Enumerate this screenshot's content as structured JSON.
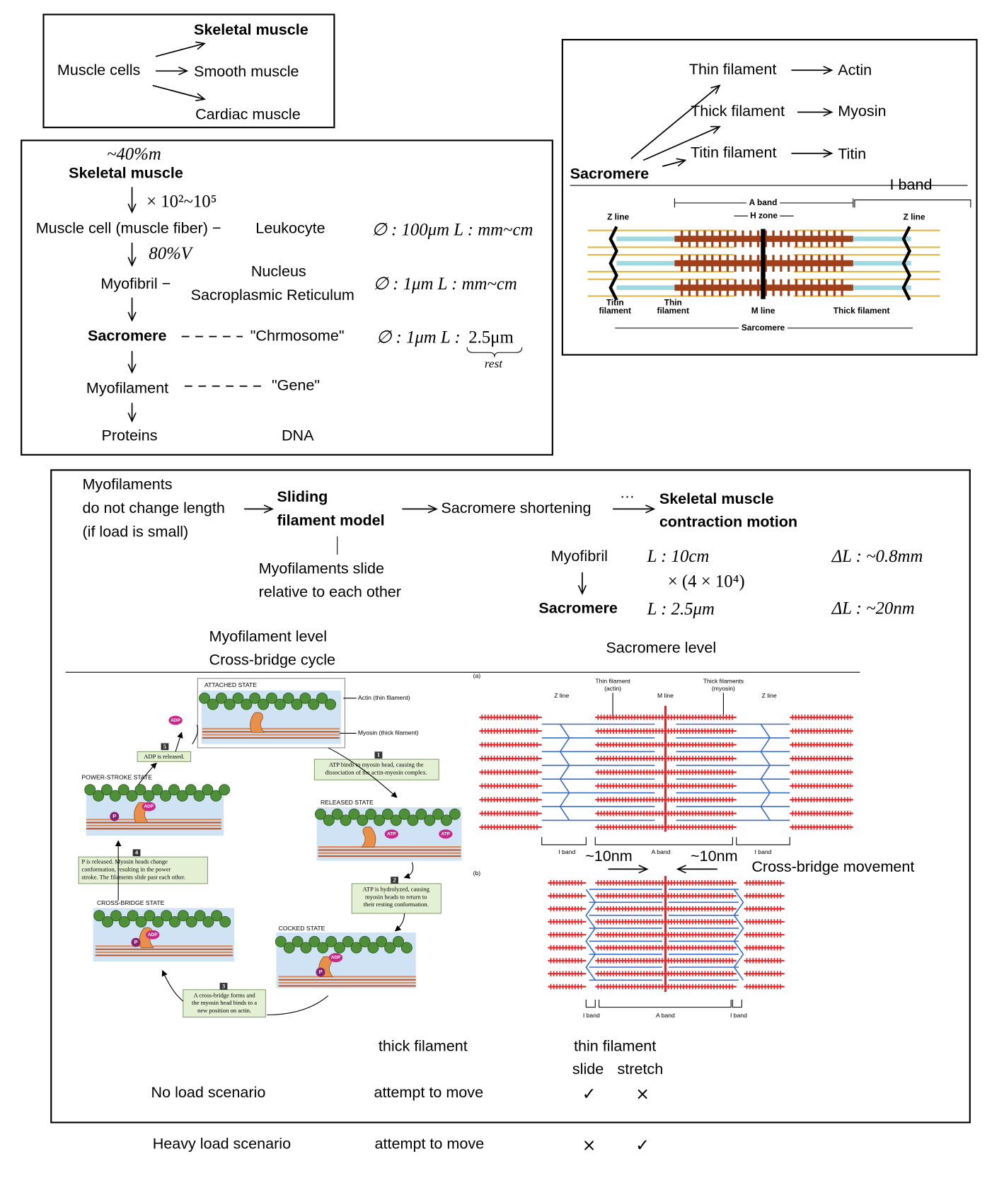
{
  "muscle_types": {
    "root": "Muscle cells",
    "types": [
      "Skeletal muscle",
      "Smooth muscle",
      "Cardiac muscle"
    ]
  },
  "hierarchy": {
    "skeletal_muscle": {
      "label": "Skeletal muscle",
      "note": "~40%m"
    },
    "count_note": "× 10²~10⁵",
    "muscle_cell": {
      "label": "Muscle cell (muscle fiber) −",
      "analog": "Leukocyte",
      "size": "∅ : 100μm  L : mm~cm"
    },
    "volume_note": "80%V",
    "myofibril": {
      "label": "Myofibril −",
      "analog": [
        "Nucleus",
        "Sacroplasmic Reticulum"
      ],
      "size": "∅ : 1μm  L : mm~cm"
    },
    "sarcomere": {
      "label": "Sacromere",
      "analog": "\"Chrmosome\"",
      "size": "∅ : 1μm  L :",
      "length": "2.5μm",
      "length_note": "rest"
    },
    "myofilament": {
      "label": "Myofilament",
      "analog": "\"Gene\""
    },
    "proteins": {
      "label": "Proteins",
      "analog": "DNA"
    }
  },
  "sarcomere_structure": {
    "root": "Sacromere",
    "components": [
      {
        "filament": "Thin filament",
        "protein": "Actin"
      },
      {
        "filament": "Thick filament",
        "protein": "Myosin"
      },
      {
        "filament": "Titin filament",
        "protein": "Titin"
      }
    ],
    "band_label": "I band",
    "diagram": {
      "a_band": "A band",
      "h_zone": "H zone",
      "z_line_left": "Z line",
      "z_line_right": "Z line",
      "titin": [
        "Titin",
        "filament"
      ],
      "thin": [
        "Thin",
        "filament"
      ],
      "m_line": "M line",
      "thick": "Thick filament",
      "sarcomere": "Sarcomere"
    }
  },
  "sliding": {
    "premise": [
      "Myofilaments",
      "do not change length",
      "(if load is small)"
    ],
    "model": [
      "Sliding",
      "filament model"
    ],
    "explanation": [
      "Myofilaments slide",
      "relative to each other"
    ],
    "result": "Sacromere shortening",
    "ellipsis": "…",
    "outcome": [
      "Skeletal muscle",
      "contraction motion"
    ],
    "myofibril": {
      "label": "Myofibril",
      "length": "L :  10cm",
      "factor": "× (4 × 10⁴)",
      "delta": "ΔL :  ~0.8mm"
    },
    "sarcomere": {
      "label": "Sacromere",
      "length": "L :  2.5μm",
      "delta": "ΔL :  ~20nm"
    }
  },
  "levels": {
    "myofilament": [
      "Myofilament level",
      "Cross-bridge cycle"
    ],
    "sarcomere": "Sacromere level"
  },
  "cycle": {
    "states": {
      "attached": "ATTACHED STATE",
      "power_stroke": "POWER-STROKE STATE",
      "released": "RELEASED STATE",
      "cross_bridge": "CROSS-BRIDGE STATE",
      "cocked": "COCKED STATE"
    },
    "labels": {
      "actin": "Actin (thin filament)",
      "myosin": "Myosin (thick filament)"
    },
    "molecules": {
      "adp": "ADP",
      "p": "P",
      "atp": "ATP"
    },
    "steps": [
      {
        "number": "1",
        "text": [
          "ATP binds to myosin head, causing the",
          "dissociation of the actin-myosin complex."
        ]
      },
      {
        "number": "2",
        "text": [
          "ATP is hydrolyzed, causing",
          "myosin heads to return to",
          "their resting conformation."
        ]
      },
      {
        "number": "3",
        "text": [
          "A cross-bridge forms and",
          "the myosin head binds to a",
          "new position on actin."
        ]
      },
      {
        "number": "4",
        "text": [
          "P is released. Myosin heads change",
          "conformation, resulting in the power",
          "stroke. The filaments slide past each other."
        ]
      },
      {
        "number": "5",
        "text": [
          "ADP is released."
        ]
      }
    ]
  },
  "sarcomere_figure": {
    "panel_a": "(a)",
    "panel_b": "(b)",
    "z_line_left": "Z line",
    "z_line_right": "Z line",
    "thin": [
      "Thin filament",
      "(actin)"
    ],
    "m_line": "M line",
    "thick": [
      "Thick filaments",
      "(myosin)"
    ],
    "bands_a": [
      "I band",
      "A band",
      "I band"
    ],
    "bands_b": [
      "I band",
      "A band",
      "I band"
    ],
    "shift_left": "~10nm",
    "shift_right": "~10nm",
    "movement": "Cross-bridge movement"
  },
  "table": {
    "headers": {
      "thick": "thick filament",
      "thin": "thin filament",
      "slide": "slide",
      "stretch": "stretch"
    },
    "rows": [
      [
        "No load scenario",
        "attempt to move",
        "✓",
        "×"
      ],
      [
        "Heavy load scenario",
        "attempt to move",
        "×",
        "✓"
      ]
    ]
  }
}
